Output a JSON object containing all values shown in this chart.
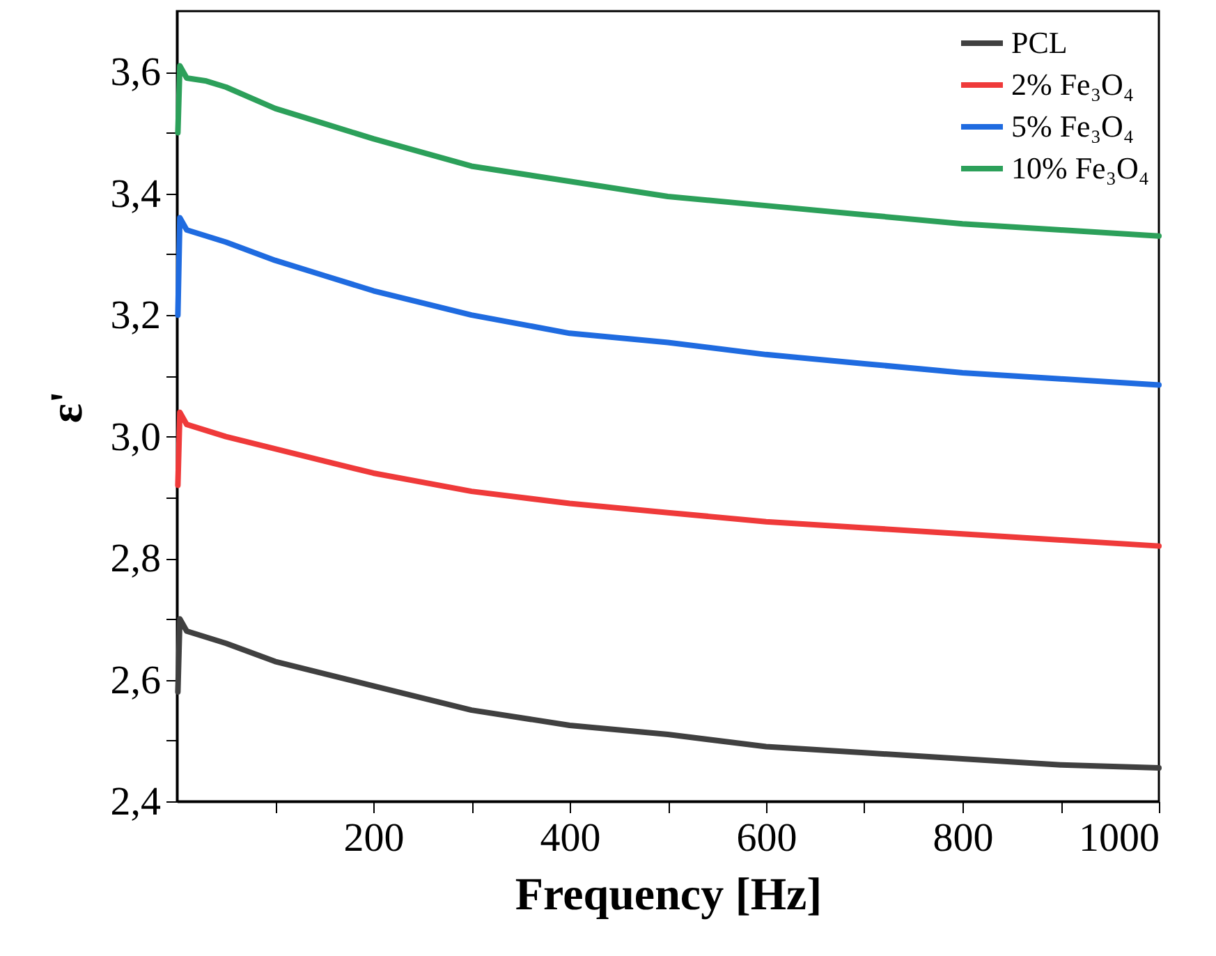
{
  "chart_data": {
    "type": "line",
    "xlabel": "Frequency [Hz]",
    "ylabel": "ε'",
    "x": [
      1,
      3,
      10,
      30,
      50,
      100,
      150,
      200,
      300,
      400,
      500,
      600,
      700,
      800,
      900,
      1000
    ],
    "series": [
      {
        "name": "PCL",
        "color": "#404040",
        "values": [
          2.58,
          2.7,
          2.68,
          2.67,
          2.66,
          2.63,
          2.61,
          2.59,
          2.55,
          2.525,
          2.51,
          2.49,
          2.48,
          2.47,
          2.46,
          2.455
        ]
      },
      {
        "name": "2% Fe₃O₄",
        "color": "#ef3a3a",
        "values": [
          2.92,
          3.04,
          3.02,
          3.01,
          3.0,
          2.98,
          2.96,
          2.94,
          2.91,
          2.89,
          2.875,
          2.86,
          2.85,
          2.84,
          2.83,
          2.82
        ]
      },
      {
        "name": "5% Fe₃O₄",
        "color": "#1f6be0",
        "values": [
          3.2,
          3.36,
          3.34,
          3.33,
          3.32,
          3.29,
          3.265,
          3.24,
          3.2,
          3.17,
          3.155,
          3.135,
          3.12,
          3.105,
          3.095,
          3.085
        ]
      },
      {
        "name": "10% Fe₃O₄",
        "color": "#2ca05a",
        "values": [
          3.5,
          3.61,
          3.59,
          3.585,
          3.575,
          3.54,
          3.515,
          3.49,
          3.445,
          3.42,
          3.395,
          3.38,
          3.365,
          3.35,
          3.34,
          3.33
        ]
      }
    ],
    "xlim": [
      0,
      1000
    ],
    "xticks": [
      {
        "value": 100,
        "label": null
      },
      200,
      {
        "value": 300,
        "label": null
      },
      400,
      {
        "value": 500,
        "label": null
      },
      600,
      {
        "value": 700,
        "label": null
      },
      800,
      {
        "value": 900,
        "label": null
      },
      1000
    ],
    "ylim": [
      2.4,
      3.7
    ],
    "yticks": [
      {
        "value": 2.4,
        "label": "2,4"
      },
      {
        "value": 2.5,
        "label": null
      },
      {
        "value": 2.6,
        "label": "2,6"
      },
      {
        "value": 2.7,
        "label": null
      },
      {
        "value": 2.8,
        "label": "2,8"
      },
      {
        "value": 2.9,
        "label": null
      },
      {
        "value": 3.0,
        "label": "3,0"
      },
      {
        "value": 3.1,
        "label": null
      },
      {
        "value": 3.2,
        "label": "3,2"
      },
      {
        "value": 3.3,
        "label": null
      },
      {
        "value": 3.4,
        "label": "3,4"
      },
      {
        "value": 3.5,
        "label": null
      },
      {
        "value": 3.6,
        "label": "3,6"
      }
    ],
    "grid": false,
    "legend": "top right",
    "marker": "none",
    "line_style": "solid"
  }
}
